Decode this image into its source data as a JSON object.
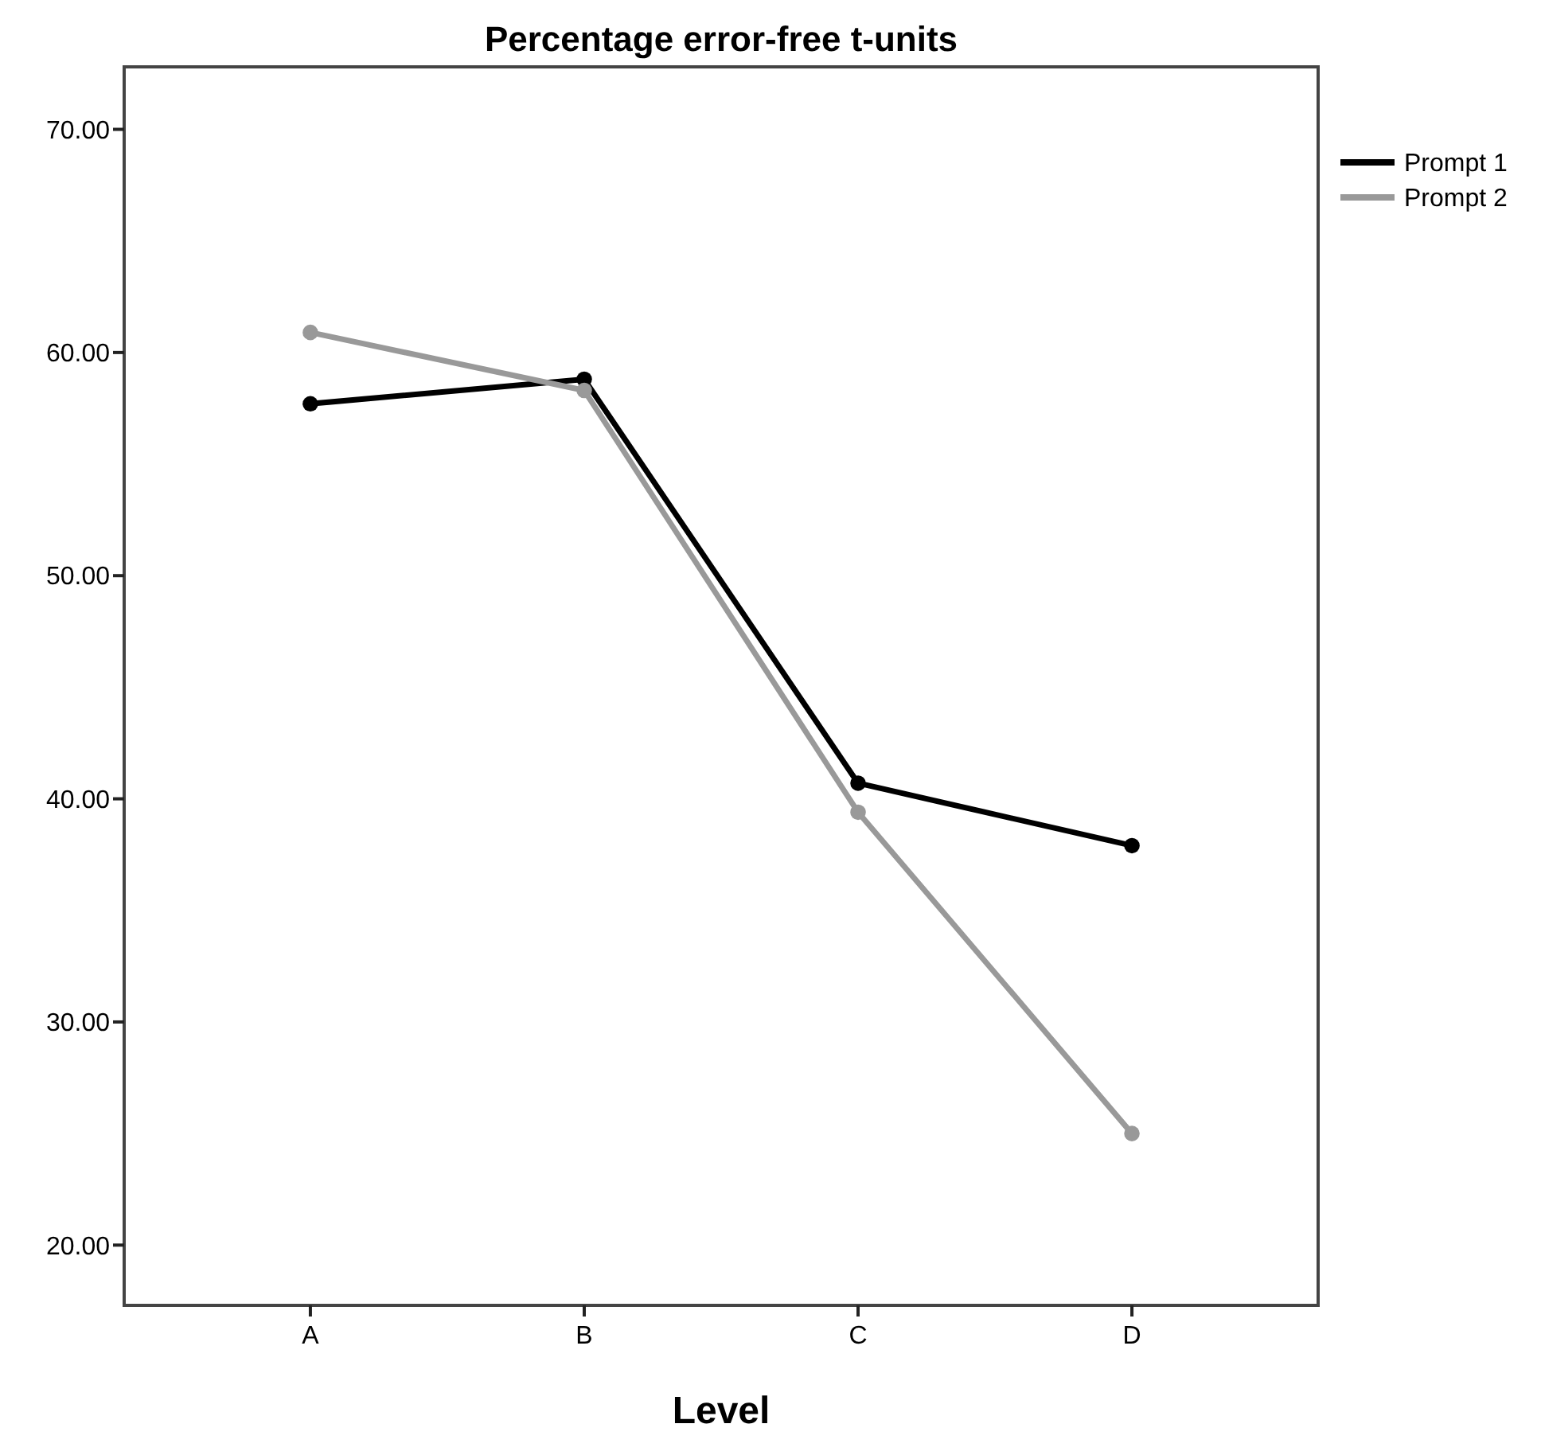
{
  "chart_data": {
    "type": "line",
    "title": "Percentage error-free t-units",
    "xlabel": "Level",
    "categories": [
      "A",
      "B",
      "C",
      "D"
    ],
    "series": [
      {
        "name": "Prompt 1",
        "color": "#000000",
        "values": [
          57.7,
          58.8,
          40.7,
          37.9
        ]
      },
      {
        "name": "Prompt 2",
        "color": "#999999",
        "values": [
          60.9,
          58.3,
          39.4,
          25.0
        ]
      }
    ],
    "ylim": [
      17.3,
      72.8
    ],
    "yticks": [
      {
        "value": 20,
        "label": "20.00"
      },
      {
        "value": 30,
        "label": "30.00"
      },
      {
        "value": 40,
        "label": "40.00"
      },
      {
        "value": 50,
        "label": "50.00"
      },
      {
        "value": 60,
        "label": "60.00"
      },
      {
        "value": 70,
        "label": "70.00"
      }
    ],
    "grid": false,
    "legend": "top right",
    "marker": "circle",
    "line_style": "solid"
  }
}
